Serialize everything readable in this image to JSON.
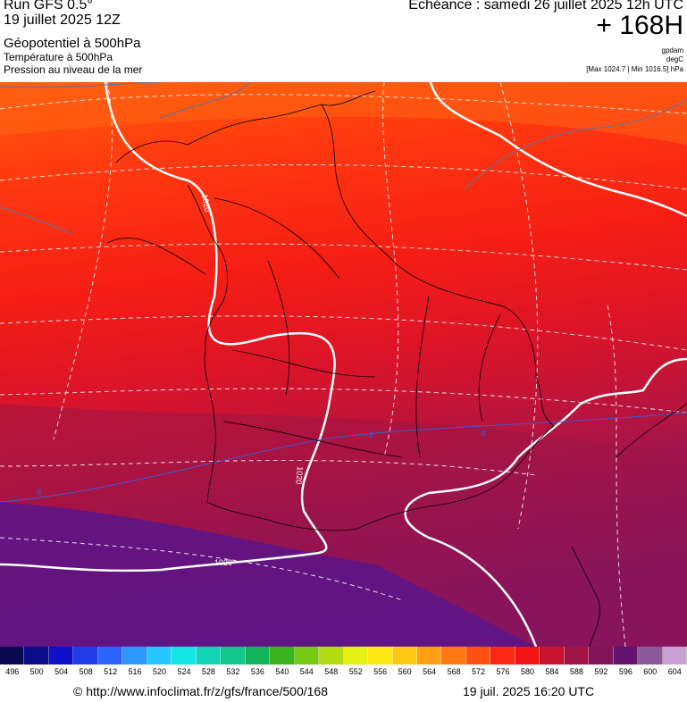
{
  "header": {
    "run": "Run GFS 0.5°",
    "date": "19 juillet 2025 12Z",
    "field_main": "Géopotentiel à 500hPa",
    "field_temp": "Température à 500hPa",
    "field_pressure": "Pression au niveau de la mer",
    "echeance": "Echéance : samedi 26 juillet 2025 12h UTC",
    "forecast_hour": "+ 168H",
    "unit_geo": "gpdam",
    "unit_temp": "degC",
    "unit_pressure": "[Max 1024.7 | Min 1016.5] hPa"
  },
  "map": {
    "isobar_labels": [
      "1020",
      "1020",
      "1020"
    ],
    "isotherm_labels": [
      "-8",
      "-8",
      "-8"
    ],
    "colors": {
      "isobar": "#ffffff",
      "isotherm_0": "#3c5ad2",
      "coast": "#000000"
    }
  },
  "legend": {
    "values": [
      "496",
      "500",
      "504",
      "508",
      "512",
      "516",
      "520",
      "524",
      "528",
      "532",
      "536",
      "540",
      "544",
      "548",
      "552",
      "556",
      "560",
      "564",
      "568",
      "572",
      "576",
      "580",
      "584",
      "588",
      "592",
      "596",
      "600",
      "604"
    ],
    "colors": [
      "#0a0a50",
      "#0d0d8c",
      "#1010c8",
      "#1f3ce6",
      "#2d64ff",
      "#2d96ff",
      "#24c8ff",
      "#14e6e6",
      "#14d2b4",
      "#14c88c",
      "#14b45a",
      "#3cb41e",
      "#78c814",
      "#b4dc14",
      "#e6f014",
      "#ffe614",
      "#ffc814",
      "#ffa014",
      "#ff7814",
      "#ff5014",
      "#ff2814",
      "#f01414",
      "#c81432",
      "#a01446",
      "#82145a",
      "#64146e",
      "#8c5a9b",
      "#c8a0d2"
    ]
  },
  "footer": {
    "copyright": "© http://www.infoclimat.fr/z/gfs/france/500/168",
    "timestamp": "19 juil. 2025 16:20 UTC"
  }
}
